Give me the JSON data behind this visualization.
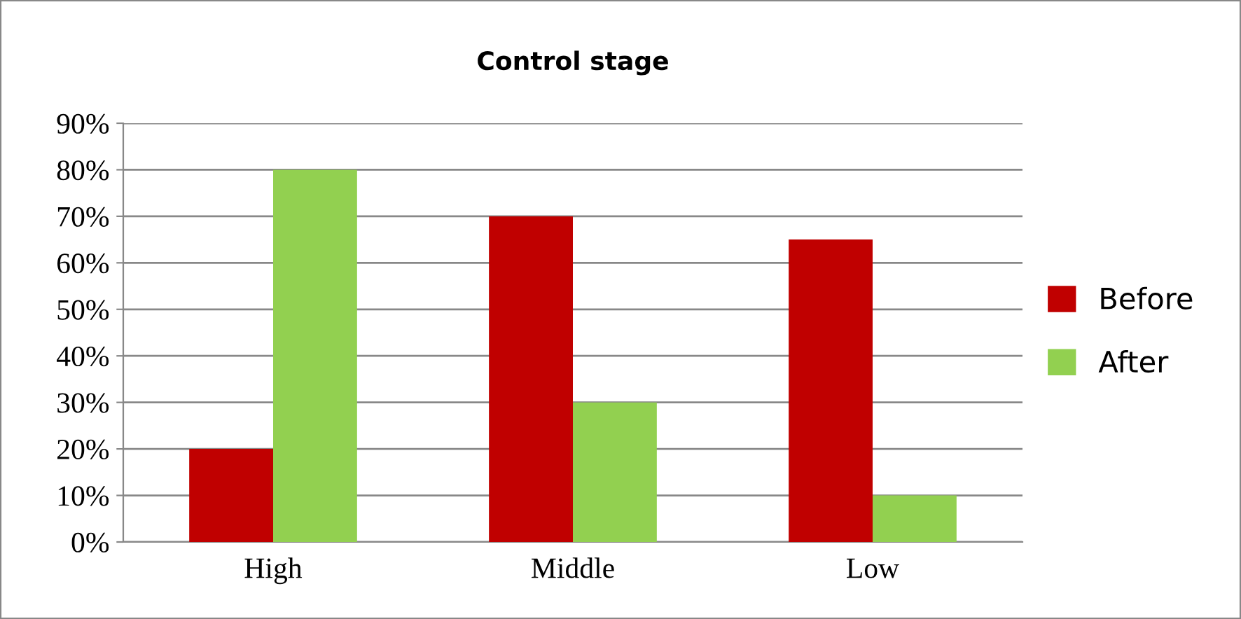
{
  "chart_data": {
    "type": "bar",
    "title": "Control stage",
    "categories": [
      "High",
      "Middle",
      "Low"
    ],
    "series": [
      {
        "name": "Before",
        "color": "#c00000",
        "values": [
          20,
          70,
          65
        ]
      },
      {
        "name": "After",
        "color": "#92d050",
        "values": [
          80,
          30,
          10
        ]
      }
    ],
    "ylim": [
      0,
      90
    ],
    "yticks": [
      {
        "value": 0,
        "label": "0%"
      },
      {
        "value": 10,
        "label": "10%"
      },
      {
        "value": 20,
        "label": "20%"
      },
      {
        "value": 30,
        "label": "30%"
      },
      {
        "value": 40,
        "label": "40%"
      },
      {
        "value": 50,
        "label": "50%"
      },
      {
        "value": 60,
        "label": "60%"
      },
      {
        "value": 70,
        "label": "70%"
      },
      {
        "value": 80,
        "label": "80%"
      },
      {
        "value": 90,
        "label": "90%"
      }
    ],
    "grid": "y",
    "legend": "right"
  }
}
